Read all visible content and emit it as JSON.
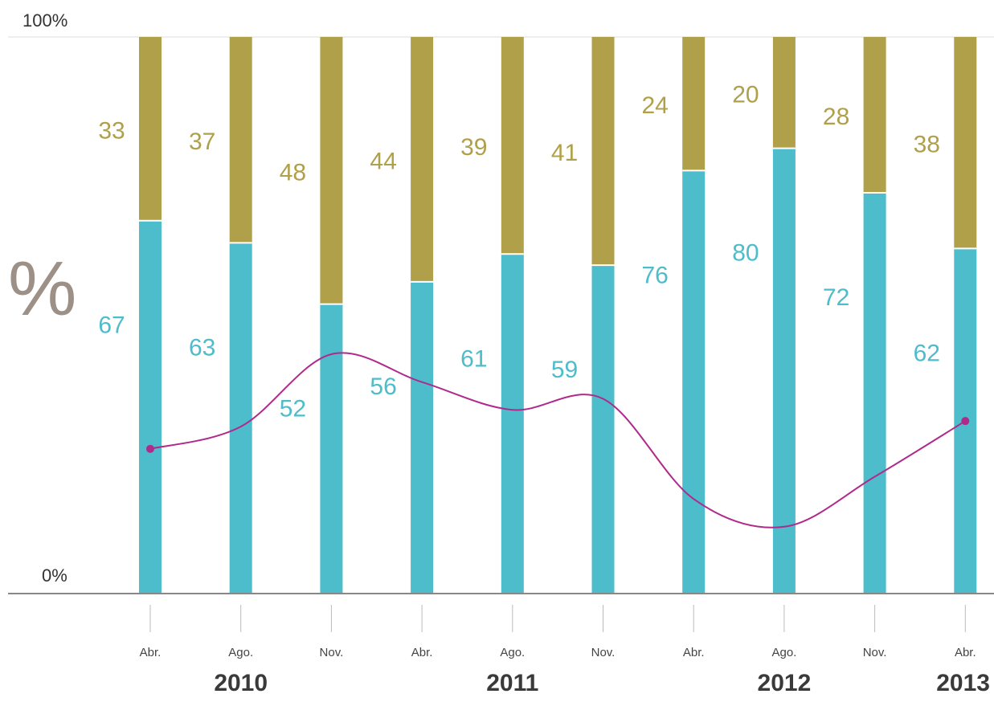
{
  "chart_data": {
    "type": "bar",
    "stacked": true,
    "categories": [
      "Abr.",
      "Ago.",
      "Nov.",
      "Abr.",
      "Ago.",
      "Nov.",
      "Abr.",
      "Ago.",
      "Nov.",
      "Abr."
    ],
    "years": [
      {
        "label": "2010",
        "under": 1
      },
      {
        "label": "2011",
        "under": 4
      },
      {
        "label": "2012",
        "under": 7
      },
      {
        "label": "2013",
        "under": 9
      }
    ],
    "series": [
      {
        "values": [
          67,
          63,
          52,
          56,
          61,
          59,
          76,
          80,
          72,
          62
        ],
        "color": "#4dbccb"
      },
      {
        "values": [
          33,
          37,
          48,
          44,
          39,
          41,
          24,
          20,
          28,
          38
        ],
        "color": "#b0a04a"
      }
    ],
    "line": {
      "color": "#b02a8c",
      "values": [
        26,
        30,
        43,
        38,
        33,
        35,
        17,
        12,
        21,
        31
      ]
    },
    "y_axis": {
      "top_label": "100%",
      "bottom_label": "0%",
      "range": [
        0,
        100
      ]
    },
    "unit_symbol": "%",
    "colors": {
      "unit": "#9c9087",
      "axis": "#888888",
      "tick": "#bbbbbb"
    }
  }
}
